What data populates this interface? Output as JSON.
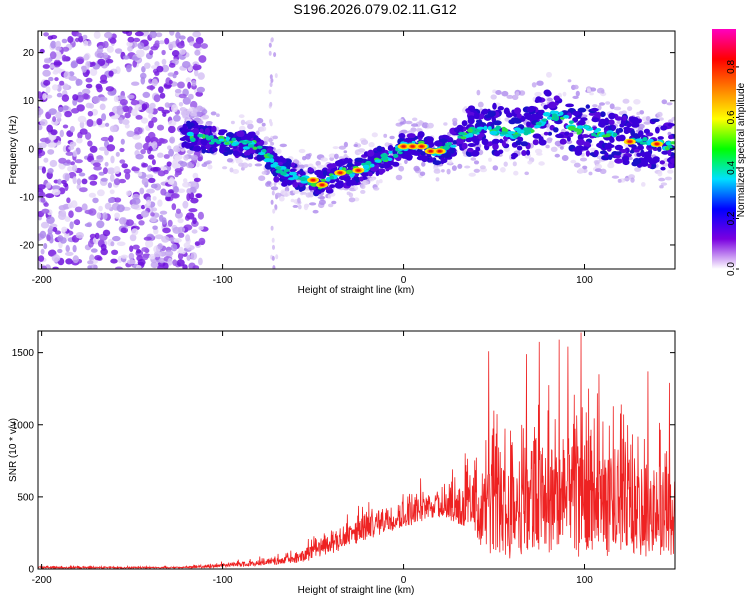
{
  "title": "S196.2026.079.02.11.G12",
  "chart_data": [
    {
      "type": "heatmap",
      "title": "S196.2026.079.02.11.G12",
      "xlabel": "Height of straight line (km)",
      "ylabel": "Frequency (Hz)",
      "xlim": [
        -202,
        150
      ],
      "ylim": [
        -25,
        24.5
      ],
      "xticks": [
        -200,
        -100,
        0,
        100
      ],
      "yticks": [
        -20,
        -10,
        0,
        10,
        20
      ],
      "xtick_labels": [
        "-200",
        "-100",
        "0",
        "100"
      ],
      "ytick_labels": [
        "-20",
        "-10",
        "0",
        "10",
        "20"
      ],
      "ridge": {
        "x": [
          -120,
          -110,
          -100,
          -90,
          -80,
          -70,
          -60,
          -55,
          -50,
          -45,
          -40,
          -35,
          -30,
          -25,
          -20,
          -15,
          -10,
          -5,
          0,
          5,
          10,
          15,
          20,
          25,
          30,
          40,
          50,
          60,
          70,
          80,
          85,
          90,
          95,
          100,
          110,
          120,
          130,
          140,
          150
        ],
        "y": [
          3,
          2,
          1.5,
          1,
          0.5,
          -4,
          -6,
          -6.5,
          -7,
          -7.5,
          -6,
          -5,
          -5,
          -4.5,
          -3.5,
          -2.5,
          -2,
          -1,
          0.5,
          0.5,
          0.5,
          -0.5,
          -0.5,
          0.5,
          2,
          4,
          4,
          3,
          4,
          7,
          7,
          6,
          4,
          4,
          3,
          2,
          1.5,
          1,
          0.5
        ],
        "peak_x": [
          -50,
          -45,
          -35,
          -25,
          0,
          5,
          10,
          15,
          20,
          125,
          140
        ],
        "peak_y": [
          -6.5,
          -7.5,
          -5,
          -4.5,
          0.5,
          0.5,
          0.5,
          -0.5,
          -0.5,
          1.5,
          1
        ]
      },
      "noise_region_x": [
        -202,
        -110
      ],
      "colorbar": {
        "label": "Normalized spectral amplitude",
        "range": [
          0,
          0.95
        ],
        "ticks": [
          0.0,
          0.2,
          0.4,
          0.6,
          0.8
        ],
        "tick_labels": [
          "0.0",
          "0.2",
          "0.4",
          "0.6",
          "0.8"
        ],
        "colors": [
          "#ffffff",
          "#7a00e0",
          "#0000ff",
          "#00e0ff",
          "#00ff00",
          "#ffff00",
          "#ff8000",
          "#ff0000",
          "#ff00c0"
        ]
      }
    },
    {
      "type": "line",
      "xlabel": "Height of straight line (km)",
      "ylabel": "SNR (10 * v/v)",
      "xlim": [
        -202,
        150
      ],
      "ylim": [
        0,
        1650
      ],
      "xticks": [
        -200,
        -100,
        0,
        100
      ],
      "yticks": [
        0,
        500,
        1000,
        1500
      ],
      "xtick_labels": [
        "-200",
        "-100",
        "0",
        "100"
      ],
      "ytick_labels": [
        "0",
        "500",
        "1000",
        "1500"
      ],
      "color": "#ee2222",
      "envelope": {
        "x": [
          -202,
          -150,
          -120,
          -100,
          -80,
          -60,
          -50,
          -40,
          -30,
          -20,
          -10,
          0,
          10,
          20,
          30,
          40,
          50,
          60,
          70,
          80,
          90,
          100,
          110,
          120,
          130,
          140,
          150
        ],
        "low": [
          5,
          5,
          5,
          10,
          20,
          40,
          60,
          100,
          150,
          200,
          250,
          280,
          320,
          350,
          300,
          150,
          80,
          60,
          60,
          80,
          80,
          80,
          80,
          80,
          80,
          80,
          80
        ],
        "high": [
          25,
          20,
          25,
          60,
          90,
          150,
          270,
          380,
          430,
          500,
          570,
          600,
          650,
          720,
          800,
          1100,
          1300,
          1380,
          1450,
          1500,
          1560,
          1500,
          1400,
          1300,
          1250,
          1200,
          1150
        ]
      },
      "spikes": [
        {
          "x": 47,
          "y": 1510
        },
        {
          "x": 68,
          "y": 1490
        },
        {
          "x": 75,
          "y": 1575
        },
        {
          "x": 86,
          "y": 1590
        },
        {
          "x": 98,
          "y": 1640
        },
        {
          "x": 108,
          "y": 1350
        },
        {
          "x": 135,
          "y": 1370
        },
        {
          "x": 147,
          "y": 1290
        }
      ]
    }
  ]
}
